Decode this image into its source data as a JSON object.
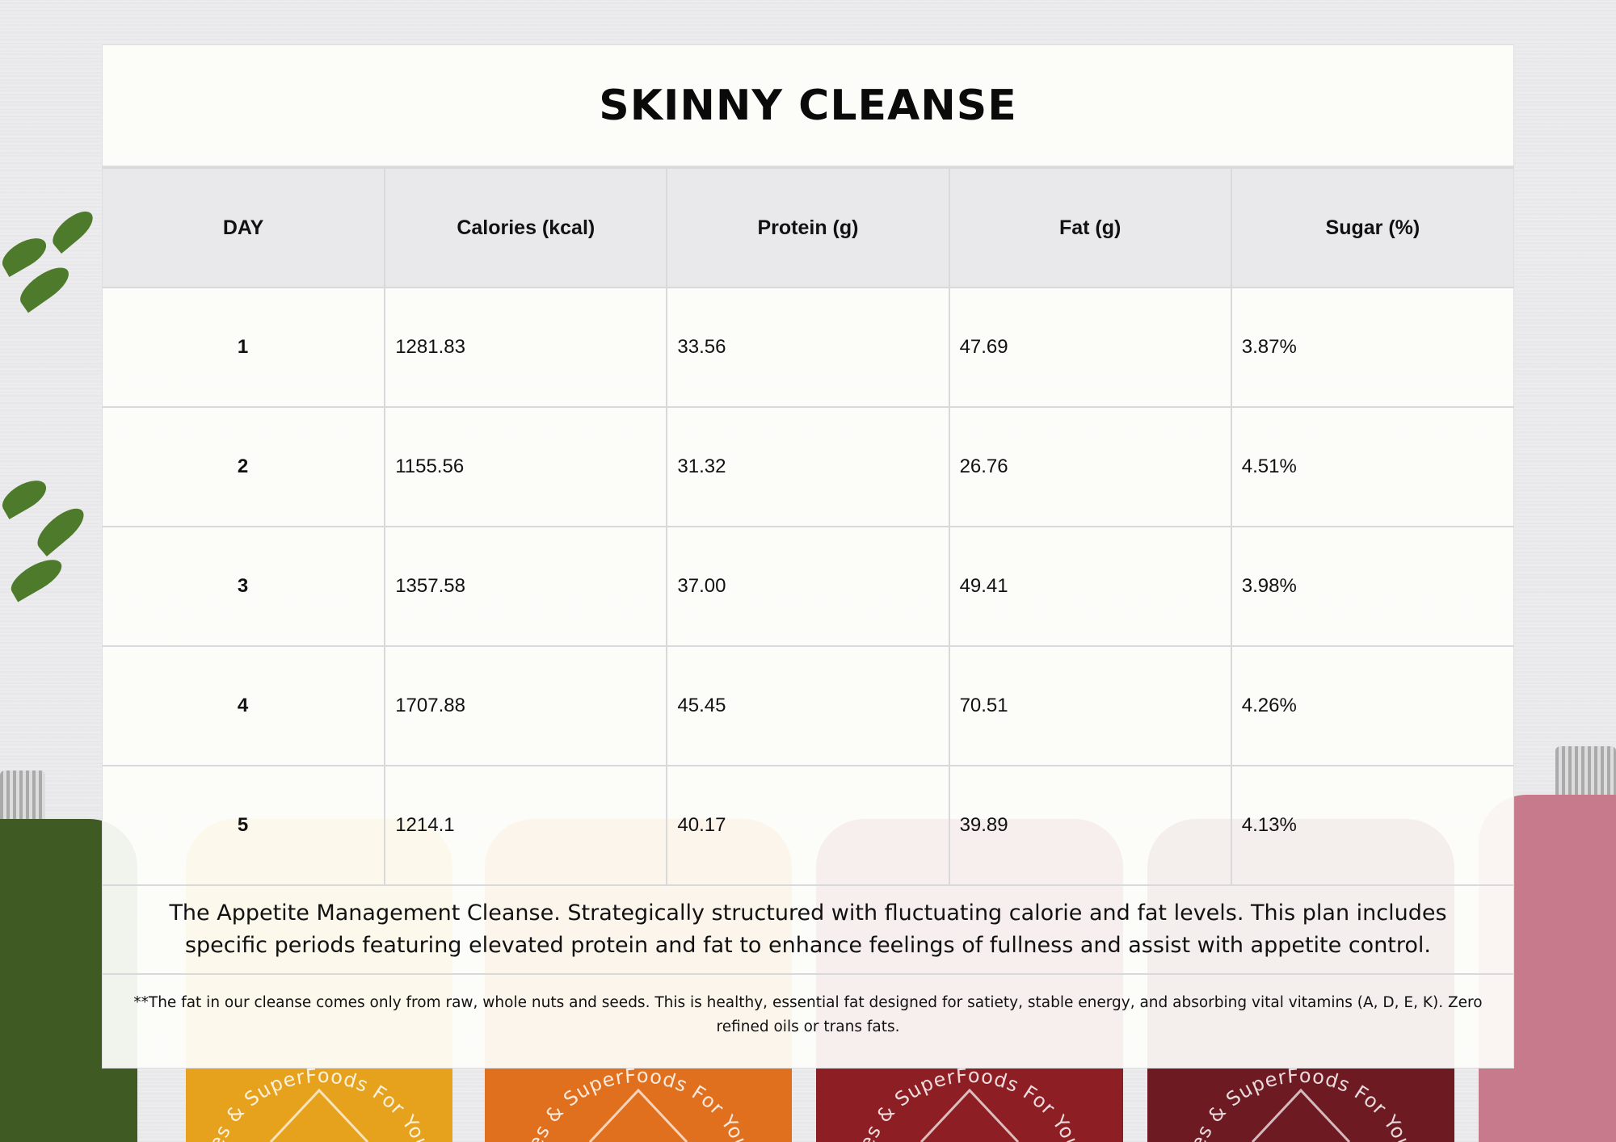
{
  "title": "SKINNY CLEANSE",
  "table": {
    "headers": [
      "DAY",
      "Calories (kcal)",
      "Protein (g)",
      "Fat (g)",
      "Sugar (%)"
    ],
    "rows": [
      [
        "1",
        "1281.83",
        "33.56",
        "47.69",
        "3.87%"
      ],
      [
        "2",
        "1155.56",
        "31.32",
        "26.76",
        "4.51%"
      ],
      [
        "3",
        "1357.58",
        "37.00",
        "49.41",
        "3.98%"
      ],
      [
        "4",
        "1707.88",
        "45.45",
        "70.51",
        "4.26%"
      ],
      [
        "5",
        "1214.1",
        "40.17",
        "39.89",
        "4.13%"
      ]
    ]
  },
  "description": "The Appetite Management Cleanse. Strategically structured with fluctuating calorie and fat levels. This plan includes specific periods featuring elevated protein and fat to enhance feelings of fullness and assist with appetite control.",
  "footnote": "**The fat in our cleanse comes only from raw, whole nuts and seeds. This is healthy, essential fat designed for satiety, stable energy, and absorbing vital vitamins (A, D, E, K). Zero refined oils or trans fats.",
  "background_logo_text": "Juices & SuperFoods For You",
  "colors": {
    "header_bg": "#e8e8ea",
    "bottle_colors": [
      "#3f5a22",
      "#e6a21c",
      "#e0701e",
      "#8c1e24",
      "#6e1a22",
      "#c77a8c"
    ]
  }
}
